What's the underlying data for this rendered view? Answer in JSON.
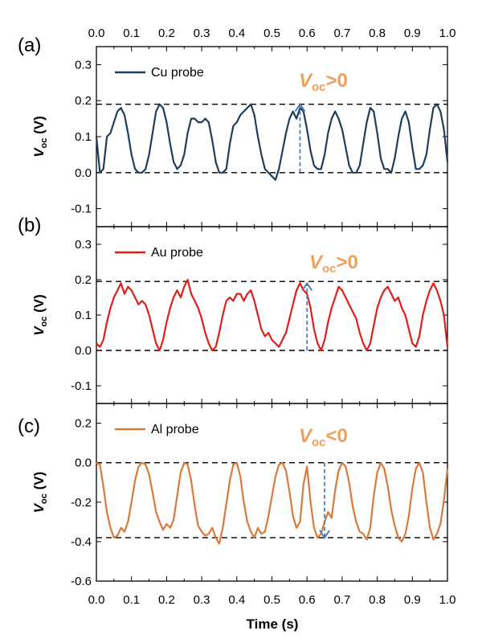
{
  "figure": {
    "xlabel": "Time (s)",
    "top_tick_labels": [
      "0.0",
      "0.1",
      "0.2",
      "0.3",
      "0.4",
      "0.5",
      "0.6",
      "0.7",
      "0.8",
      "0.9",
      "1.0"
    ],
    "bottom_tick_labels": [
      "0.0",
      "0.1",
      "0.2",
      "0.3",
      "0.4",
      "0.5",
      "0.6",
      "0.7",
      "0.8",
      "0.9",
      "1.0"
    ]
  },
  "colors": {
    "cu": "#1d3e5c",
    "au": "#e01e1a",
    "al": "#d97a3a",
    "annotation": "#f0a05a",
    "arrow": "#4f7fb6"
  },
  "chart_data": [
    {
      "type": "line",
      "panel_label": "(a)",
      "ylabel": "Voc (V)",
      "ylabel_main": "V",
      "ylabel_sub": "oc",
      "ylabel_unit": " (V)",
      "xlim": [
        0,
        1
      ],
      "ylim": [
        -0.15,
        0.35
      ],
      "yticks": [
        -0.1,
        0,
        0.1,
        0.2,
        0.3
      ],
      "ytick_labels": [
        "-0.1",
        "0.0",
        "0.1",
        "0.2",
        "0.3"
      ],
      "reference_lines": [
        0.19,
        0.0
      ],
      "annotation": {
        "main": "V",
        "sub": "oc",
        "rest": ">0",
        "arrow_x": 0.58,
        "arrow_from": 0.0,
        "arrow_to": 0.19
      },
      "series": [
        {
          "name": "Cu probe",
          "color": "#1d3e5c",
          "x": [
            0,
            0.01,
            0.02,
            0.03,
            0.04,
            0.05,
            0.06,
            0.07,
            0.08,
            0.09,
            0.1,
            0.11,
            0.12,
            0.13,
            0.14,
            0.15,
            0.16,
            0.17,
            0.18,
            0.19,
            0.2,
            0.21,
            0.22,
            0.23,
            0.24,
            0.25,
            0.26,
            0.27,
            0.28,
            0.29,
            0.3,
            0.31,
            0.32,
            0.33,
            0.34,
            0.35,
            0.36,
            0.37,
            0.38,
            0.39,
            0.4,
            0.41,
            0.42,
            0.43,
            0.44,
            0.45,
            0.46,
            0.47,
            0.48,
            0.49,
            0.5,
            0.51,
            0.52,
            0.53,
            0.54,
            0.55,
            0.56,
            0.57,
            0.58,
            0.59,
            0.6,
            0.61,
            0.62,
            0.63,
            0.64,
            0.65,
            0.66,
            0.67,
            0.68,
            0.69,
            0.7,
            0.71,
            0.72,
            0.73,
            0.74,
            0.75,
            0.76,
            0.77,
            0.78,
            0.79,
            0.8,
            0.81,
            0.82,
            0.83,
            0.84,
            0.85,
            0.86,
            0.87,
            0.88,
            0.89,
            0.9,
            0.91,
            0.92,
            0.93,
            0.94,
            0.95,
            0.96,
            0.97,
            0.98,
            0.99,
            1.0
          ],
          "y": [
            0.1,
            0.0,
            0.01,
            0.1,
            0.11,
            0.14,
            0.17,
            0.18,
            0.16,
            0.11,
            0.05,
            0.01,
            0.0,
            0.0,
            0.01,
            0.05,
            0.11,
            0.17,
            0.19,
            0.18,
            0.14,
            0.08,
            0.03,
            0.01,
            0.02,
            0.05,
            0.11,
            0.15,
            0.15,
            0.14,
            0.14,
            0.15,
            0.14,
            0.09,
            0.03,
            0.0,
            0.0,
            0.01,
            0.08,
            0.13,
            0.14,
            0.16,
            0.17,
            0.18,
            0.19,
            0.16,
            0.1,
            0.05,
            0.01,
            0.0,
            -0.01,
            -0.02,
            0.01,
            0.06,
            0.11,
            0.15,
            0.17,
            0.15,
            0.18,
            0.17,
            0.12,
            0.06,
            0.02,
            0.01,
            0.01,
            0.05,
            0.11,
            0.15,
            0.17,
            0.15,
            0.12,
            0.07,
            0.02,
            0.0,
            0.0,
            0.02,
            0.08,
            0.14,
            0.18,
            0.17,
            0.11,
            0.04,
            0.01,
            0.01,
            0.0,
            0.04,
            0.1,
            0.15,
            0.17,
            0.14,
            0.07,
            0.01,
            0.01,
            0.02,
            0.05,
            0.12,
            0.18,
            0.19,
            0.17,
            0.12,
            0.03
          ]
        }
      ]
    },
    {
      "type": "line",
      "panel_label": "(b)",
      "ylabel": "Voc (V)",
      "ylabel_main": "V",
      "ylabel_sub": "oc",
      "ylabel_unit": " (V)",
      "xlim": [
        0,
        1
      ],
      "ylim": [
        -0.15,
        0.35
      ],
      "yticks": [
        -0.1,
        0,
        0.1,
        0.2,
        0.3
      ],
      "ytick_labels": [
        "-0.1",
        "0.0",
        "0.1",
        "0.2",
        "0.3"
      ],
      "reference_lines": [
        0.195,
        0.0
      ],
      "annotation": {
        "main": "V",
        "sub": "oc",
        "rest": ">0",
        "arrow_x": 0.6,
        "arrow_from": 0.0,
        "arrow_to": 0.19
      },
      "series": [
        {
          "name": "Au probe",
          "color": "#e01e1a",
          "x": [
            0,
            0.01,
            0.02,
            0.03,
            0.04,
            0.05,
            0.06,
            0.07,
            0.08,
            0.09,
            0.1,
            0.11,
            0.12,
            0.13,
            0.14,
            0.15,
            0.16,
            0.17,
            0.18,
            0.19,
            0.2,
            0.21,
            0.22,
            0.23,
            0.24,
            0.25,
            0.26,
            0.27,
            0.28,
            0.29,
            0.3,
            0.31,
            0.32,
            0.33,
            0.34,
            0.35,
            0.36,
            0.37,
            0.38,
            0.39,
            0.4,
            0.41,
            0.42,
            0.43,
            0.44,
            0.45,
            0.46,
            0.47,
            0.48,
            0.49,
            0.5,
            0.51,
            0.52,
            0.53,
            0.54,
            0.55,
            0.56,
            0.57,
            0.58,
            0.59,
            0.6,
            0.61,
            0.62,
            0.63,
            0.64,
            0.65,
            0.66,
            0.67,
            0.68,
            0.69,
            0.7,
            0.71,
            0.72,
            0.73,
            0.74,
            0.75,
            0.76,
            0.77,
            0.78,
            0.79,
            0.8,
            0.81,
            0.82,
            0.83,
            0.84,
            0.85,
            0.86,
            0.87,
            0.88,
            0.89,
            0.9,
            0.91,
            0.92,
            0.93,
            0.94,
            0.95,
            0.96,
            0.97,
            0.98,
            0.99,
            1.0
          ],
          "y": [
            0.02,
            0.01,
            0.03,
            0.08,
            0.12,
            0.15,
            0.17,
            0.19,
            0.16,
            0.18,
            0.17,
            0.15,
            0.13,
            0.14,
            0.13,
            0.1,
            0.06,
            0.02,
            0.0,
            0.03,
            0.08,
            0.12,
            0.15,
            0.17,
            0.15,
            0.18,
            0.2,
            0.16,
            0.14,
            0.12,
            0.09,
            0.05,
            0.02,
            0.0,
            0.01,
            0.05,
            0.1,
            0.14,
            0.15,
            0.14,
            0.16,
            0.16,
            0.14,
            0.16,
            0.17,
            0.14,
            0.1,
            0.06,
            0.04,
            0.05,
            0.03,
            0.02,
            0.01,
            0.03,
            0.05,
            0.09,
            0.13,
            0.17,
            0.19,
            0.17,
            0.16,
            0.12,
            0.06,
            0.02,
            0.0,
            0.03,
            0.08,
            0.12,
            0.15,
            0.18,
            0.17,
            0.15,
            0.13,
            0.11,
            0.09,
            0.05,
            0.02,
            0.0,
            0.02,
            0.07,
            0.12,
            0.15,
            0.17,
            0.18,
            0.16,
            0.14,
            0.15,
            0.12,
            0.1,
            0.06,
            0.02,
            0.01,
            0.04,
            0.1,
            0.14,
            0.17,
            0.19,
            0.17,
            0.14,
            0.1,
            0.01
          ]
        }
      ]
    },
    {
      "type": "line",
      "panel_label": "(c)",
      "ylabel": "Voc (V)",
      "ylabel_main": "V",
      "ylabel_sub": "oc",
      "ylabel_unit": " (V)",
      "xlim": [
        0,
        1
      ],
      "ylim": [
        -0.6,
        0.3
      ],
      "yticks": [
        -0.6,
        -0.4,
        -0.2,
        0,
        0.2
      ],
      "ytick_labels": [
        "-0.6",
        "-0.4",
        "-0.2",
        "0.0",
        "0.2"
      ],
      "reference_lines": [
        0.0,
        -0.38
      ],
      "annotation": {
        "main": "V",
        "sub": "oc",
        "rest": "<0",
        "arrow_x": 0.65,
        "arrow_from": 0.0,
        "arrow_to": -0.38
      },
      "series": [
        {
          "name": "Al probe",
          "color": "#d97a3a",
          "x": [
            0,
            0.01,
            0.02,
            0.03,
            0.04,
            0.05,
            0.06,
            0.07,
            0.08,
            0.09,
            0.1,
            0.11,
            0.12,
            0.13,
            0.14,
            0.15,
            0.16,
            0.17,
            0.18,
            0.19,
            0.2,
            0.21,
            0.22,
            0.23,
            0.24,
            0.25,
            0.26,
            0.27,
            0.28,
            0.29,
            0.3,
            0.31,
            0.32,
            0.33,
            0.34,
            0.35,
            0.36,
            0.37,
            0.38,
            0.39,
            0.4,
            0.41,
            0.42,
            0.43,
            0.44,
            0.45,
            0.46,
            0.47,
            0.48,
            0.49,
            0.5,
            0.51,
            0.52,
            0.53,
            0.54,
            0.55,
            0.56,
            0.57,
            0.58,
            0.59,
            0.6,
            0.61,
            0.62,
            0.63,
            0.64,
            0.65,
            0.66,
            0.67,
            0.68,
            0.69,
            0.7,
            0.71,
            0.72,
            0.73,
            0.74,
            0.75,
            0.76,
            0.77,
            0.78,
            0.79,
            0.8,
            0.81,
            0.82,
            0.83,
            0.84,
            0.85,
            0.86,
            0.87,
            0.88,
            0.89,
            0.9,
            0.91,
            0.92,
            0.93,
            0.94,
            0.95,
            0.96,
            0.97,
            0.98,
            0.99,
            1.0
          ],
          "y": [
            0.0,
            -0.01,
            -0.12,
            -0.25,
            -0.33,
            -0.38,
            -0.37,
            -0.33,
            -0.35,
            -0.3,
            -0.2,
            -0.09,
            -0.02,
            0.0,
            -0.01,
            -0.06,
            -0.15,
            -0.25,
            -0.3,
            -0.34,
            -0.31,
            -0.33,
            -0.29,
            -0.17,
            -0.05,
            0.0,
            -0.01,
            -0.09,
            -0.22,
            -0.32,
            -0.35,
            -0.37,
            -0.36,
            -0.33,
            -0.38,
            -0.41,
            -0.33,
            -0.21,
            -0.09,
            -0.01,
            0.0,
            -0.07,
            -0.2,
            -0.3,
            -0.35,
            -0.38,
            -0.33,
            -0.36,
            -0.35,
            -0.27,
            -0.17,
            -0.07,
            -0.01,
            0.0,
            -0.04,
            -0.15,
            -0.27,
            -0.33,
            -0.3,
            -0.11,
            -0.02,
            -0.2,
            -0.33,
            -0.38,
            -0.36,
            -0.3,
            -0.25,
            -0.28,
            -0.14,
            -0.04,
            0.0,
            -0.02,
            -0.1,
            -0.22,
            -0.3,
            -0.35,
            -0.36,
            -0.39,
            -0.33,
            -0.17,
            -0.05,
            0.0,
            -0.03,
            -0.12,
            -0.24,
            -0.32,
            -0.38,
            -0.4,
            -0.36,
            -0.27,
            -0.13,
            -0.03,
            0.0,
            -0.05,
            -0.2,
            -0.33,
            -0.39,
            -0.36,
            -0.31,
            -0.19,
            -0.03
          ]
        }
      ]
    }
  ]
}
